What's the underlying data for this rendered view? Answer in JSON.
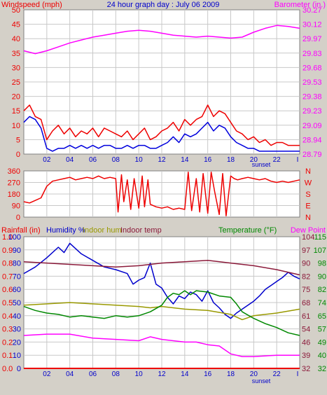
{
  "title": "24 hour graph day : July 06 2009",
  "colors": {
    "wind_avg": "#0000dd",
    "wind_gust": "#ee0000",
    "barometer": "#ff00ff",
    "wind_dir": "#ee0000",
    "humidity": "#0000cc",
    "indoor_hum": "#999900",
    "indoor_temp": "#8b1a3a",
    "temperature": "#008800",
    "dew_point": "#ff00ff",
    "rainfall": "#ee0000",
    "grid": "#c8c8c8",
    "label_red": "#ee0000",
    "label_magenta": "#ff00ff",
    "label_blue": "#0000cc",
    "label_olive": "#999900",
    "label_maroon": "#8b1a3a",
    "label_green": "#008800"
  },
  "chart_data": [
    {
      "type": "line",
      "name": "wind-barometer",
      "ylabel_left": "Windspeed (mph)",
      "ylabel_right": "Barometer (in.)",
      "x_ticks": [
        "02",
        "04",
        "06",
        "08",
        "10",
        "12",
        "14",
        "16",
        "18",
        "20",
        "22"
      ],
      "x_annotation": "sunset",
      "x_end_marker": "I",
      "xlim": [
        0,
        24
      ],
      "ylim_left": [
        0,
        50
      ],
      "yticks_left": [
        "0",
        "5",
        "10",
        "15",
        "20",
        "25",
        "30",
        "35",
        "40",
        "45",
        "50"
      ],
      "ylim_right": [
        28.79,
        30.27
      ],
      "yticks_right": [
        "28.79",
        "28.94",
        "29.09",
        "29.23",
        "29.38",
        "29.53",
        "29.68",
        "29.83",
        "29.97",
        "30.12",
        "30.27"
      ],
      "grid": true,
      "series": [
        {
          "key": "wind_gust",
          "axis": "left",
          "x": [
            0.0,
            0.5,
            1.0,
            1.5,
            2.0,
            2.5,
            3.0,
            3.5,
            4.0,
            4.5,
            5.0,
            5.5,
            6.0,
            6.5,
            7.0,
            7.5,
            8.0,
            8.5,
            9.0,
            9.5,
            10.0,
            10.5,
            11.0,
            11.5,
            12.0,
            12.5,
            13.0,
            13.5,
            14.0,
            14.5,
            15.0,
            15.5,
            16.0,
            16.5,
            17.0,
            17.5,
            18.0,
            18.5,
            19.0,
            19.5,
            20.0,
            20.5,
            21.0,
            21.5,
            22.0,
            22.5,
            23.0,
            23.5,
            24.0
          ],
          "y": [
            15,
            17,
            13,
            12,
            5,
            8,
            10,
            7,
            9,
            6,
            8,
            7,
            9,
            6,
            9,
            8,
            7,
            6,
            8,
            5,
            7,
            9,
            5,
            6,
            8,
            9,
            11,
            8,
            12,
            10,
            12,
            13,
            17,
            13,
            15,
            14,
            11,
            8,
            7,
            5,
            6,
            4,
            5,
            3,
            4,
            4,
            3,
            3,
            3
          ]
        },
        {
          "key": "wind_avg",
          "axis": "left",
          "x": [
            0.0,
            0.5,
            1.0,
            1.5,
            2.0,
            2.5,
            3.0,
            3.5,
            4.0,
            4.5,
            5.0,
            5.5,
            6.0,
            6.5,
            7.0,
            7.5,
            8.0,
            8.5,
            9.0,
            9.5,
            10.0,
            10.5,
            11.0,
            11.5,
            12.0,
            12.5,
            13.0,
            13.5,
            14.0,
            14.5,
            15.0,
            15.5,
            16.0,
            16.5,
            17.0,
            17.5,
            18.0,
            18.5,
            19.0,
            19.5,
            20.0,
            20.5,
            21.0,
            21.5,
            22.0,
            22.5,
            23.0,
            23.5,
            24.0
          ],
          "y": [
            11,
            13,
            12,
            9,
            2,
            1,
            2,
            2,
            3,
            2,
            3,
            2,
            3,
            2,
            3,
            3,
            2,
            2,
            3,
            2,
            3,
            3,
            2,
            2,
            3,
            4,
            6,
            4,
            7,
            6,
            7,
            9,
            11,
            8,
            10,
            9,
            6,
            4,
            3,
            2,
            2,
            1,
            1,
            1,
            1,
            1,
            1,
            1,
            1
          ]
        },
        {
          "key": "barometer",
          "axis": "right",
          "x": [
            0.0,
            1.0,
            2.0,
            3.0,
            4.0,
            5.0,
            6.0,
            7.0,
            8.0,
            9.0,
            10.0,
            11.0,
            12.0,
            13.0,
            14.0,
            15.0,
            16.0,
            17.0,
            18.0,
            19.0,
            20.0,
            21.0,
            22.0,
            23.0,
            24.0
          ],
          "y": [
            29.85,
            29.82,
            29.85,
            29.89,
            29.93,
            29.96,
            29.99,
            30.01,
            30.03,
            30.05,
            30.06,
            30.05,
            30.03,
            30.01,
            30.0,
            29.99,
            30.0,
            29.99,
            29.98,
            29.99,
            30.04,
            30.08,
            30.11,
            30.1,
            30.08
          ]
        }
      ]
    },
    {
      "type": "line",
      "name": "wind-direction",
      "yticks_left": [
        "0",
        "90",
        "180",
        "270",
        "360"
      ],
      "ylim": [
        0,
        360
      ],
      "yticks_right": [
        "N",
        "E",
        "S",
        "W",
        "N"
      ],
      "xlim": [
        0,
        24
      ],
      "grid": true,
      "series": [
        {
          "key": "wind_dir",
          "x": [
            0.0,
            0.5,
            1.0,
            1.5,
            2.0,
            2.5,
            3.0,
            3.5,
            4.0,
            4.5,
            5.0,
            5.5,
            6.0,
            6.5,
            7.0,
            7.5,
            8.0,
            8.2,
            8.5,
            8.7,
            9.0,
            9.3,
            9.6,
            10.0,
            10.3,
            10.5,
            10.8,
            11.0,
            11.5,
            12.0,
            12.5,
            13.0,
            13.5,
            14.0,
            14.3,
            14.6,
            15.0,
            15.3,
            15.6,
            16.0,
            16.3,
            16.6,
            17.0,
            17.3,
            17.6,
            18.0,
            18.3,
            18.6,
            19.0,
            19.5,
            20.0,
            20.5,
            21.0,
            21.5,
            22.0,
            22.5,
            23.0,
            23.5,
            24.0
          ],
          "y": [
            120,
            110,
            130,
            150,
            240,
            280,
            290,
            300,
            310,
            290,
            300,
            310,
            300,
            320,
            300,
            310,
            300,
            40,
            330,
            120,
            290,
            60,
            300,
            70,
            320,
            80,
            290,
            100,
            80,
            70,
            80,
            60,
            70,
            60,
            350,
            50,
            300,
            40,
            340,
            30,
            350,
            200,
            20,
            340,
            10,
            320,
            300,
            290,
            300,
            310,
            300,
            290,
            300,
            280,
            270,
            280,
            270,
            280,
            290
          ]
        }
      ]
    },
    {
      "type": "line",
      "name": "humidity-temperature",
      "ylabel_left": "Rainfall (in)",
      "label_humidity": "Humidity %",
      "label_indoor_hum": "Indoor hum",
      "label_indoor_temp": "Indoor temp",
      "ylabel_right_a": "Temperature (°F)",
      "ylabel_right_b": "Dew Point",
      "x_ticks": [
        "02",
        "04",
        "06",
        "08",
        "10",
        "12",
        "14",
        "16",
        "18",
        "20",
        "22"
      ],
      "x_annotation": "sunset",
      "x_end_marker": "I",
      "xlim": [
        0,
        24
      ],
      "yticks_rain": [
        "0.0",
        "0.1",
        "0.2",
        "0.3",
        "0.4",
        "0.5",
        "0.6",
        "0.7",
        "0.8",
        "0.9",
        "1.0"
      ],
      "yticks_humidity": [
        "0",
        "10",
        "20",
        "30",
        "40",
        "50",
        "60",
        "70",
        "80",
        "90",
        "100"
      ],
      "yticks_temp_a": [
        "32",
        "39",
        "46",
        "54",
        "61",
        "68",
        "75",
        "82",
        "90",
        "97",
        "104"
      ],
      "yticks_temp_b": [
        "32",
        "40",
        "49",
        "57",
        "65",
        "74",
        "82",
        "90",
        "98",
        "107",
        "115"
      ],
      "ylim_humidity": [
        0,
        100
      ],
      "grid": true,
      "series": [
        {
          "key": "humidity",
          "x": [
            0.0,
            1.0,
            2.0,
            3.0,
            3.5,
            4.0,
            5.0,
            6.0,
            7.0,
            8.0,
            9.0,
            9.5,
            10.0,
            10.5,
            11.0,
            11.5,
            12.0,
            12.5,
            13.0,
            13.5,
            14.0,
            14.5,
            15.0,
            15.5,
            16.0,
            16.5,
            17.0,
            17.5,
            18.0,
            18.5,
            19.0,
            19.5,
            20.0,
            20.5,
            21.0,
            21.5,
            22.0,
            22.5,
            23.0,
            23.5,
            24.0
          ],
          "y": [
            72,
            77,
            84,
            92,
            88,
            95,
            87,
            82,
            77,
            75,
            72,
            64,
            67,
            69,
            80,
            64,
            61,
            54,
            49,
            55,
            53,
            58,
            56,
            51,
            59,
            50,
            46,
            41,
            38,
            42,
            45,
            48,
            51,
            55,
            60,
            63,
            66,
            69,
            73,
            70,
            68
          ]
        },
        {
          "key": "indoor_temp",
          "x": [
            0.0,
            2.0,
            4.0,
            6.0,
            8.0,
            10.0,
            12.0,
            14.0,
            16.0,
            18.0,
            20.0,
            22.0,
            24.0
          ],
          "y": [
            81,
            80,
            79,
            78,
            77,
            78,
            80,
            81,
            82,
            80,
            78,
            75,
            71
          ]
        },
        {
          "key": "indoor_hum",
          "x": [
            0.0,
            2.0,
            4.0,
            6.0,
            8.0,
            10.0,
            11.0,
            12.0,
            14.0,
            16.0,
            18.0,
            19.0,
            20.0,
            22.0,
            24.0
          ],
          "y": [
            48,
            49,
            50,
            49,
            48,
            47,
            46,
            47,
            45,
            44,
            41,
            37,
            40,
            42,
            45
          ]
        },
        {
          "key": "temperature",
          "x": [
            0.0,
            1.0,
            2.0,
            3.0,
            4.0,
            5.0,
            6.0,
            7.0,
            8.0,
            9.0,
            10.0,
            11.0,
            12.0,
            12.5,
            13.0,
            13.5,
            14.0,
            14.5,
            15.0,
            16.0,
            17.0,
            18.0,
            18.5,
            19.0,
            20.0,
            21.0,
            22.0,
            23.0,
            24.0
          ],
          "y": [
            47,
            44,
            42,
            41,
            39,
            40,
            39,
            38,
            40,
            39,
            40,
            43,
            48,
            54,
            57,
            56,
            59,
            56,
            59,
            58,
            55,
            54,
            49,
            43,
            38,
            34,
            31,
            27,
            25
          ]
        },
        {
          "key": "dew_point",
          "x": [
            0.0,
            2.0,
            4.0,
            6.0,
            8.0,
            10.0,
            11.0,
            12.0,
            14.0,
            15.0,
            16.0,
            17.0,
            18.0,
            19.0,
            20.0,
            22.0,
            24.0
          ],
          "y": [
            25,
            26,
            26,
            23,
            22,
            21,
            24,
            22,
            20,
            20,
            18,
            17,
            11,
            9,
            9,
            10,
            10
          ]
        },
        {
          "key": "rainfall",
          "x": [
            0.0,
            24.0
          ],
          "y": [
            0.0,
            0.0
          ]
        }
      ]
    }
  ]
}
